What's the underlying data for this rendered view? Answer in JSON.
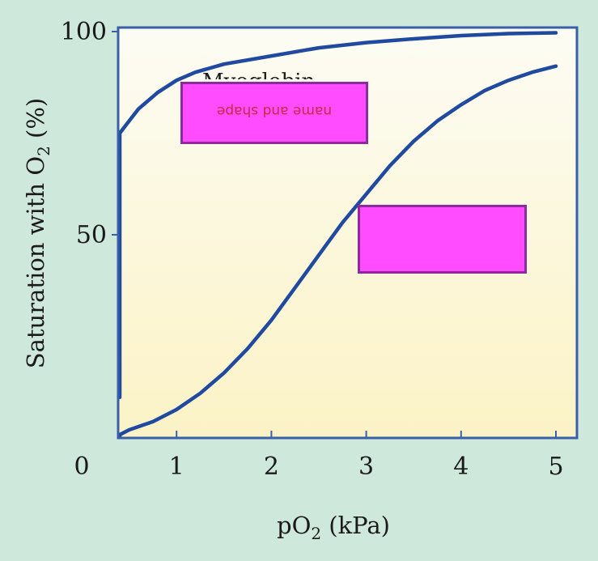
{
  "colors": {
    "background": "#cfe8dc",
    "plot_area_top": "#fdfcf4",
    "plot_area_bottom": "#fbf3c6",
    "axis": "#3a5fa8",
    "curve": "#1f4aa0",
    "label_box_fill": "#ff4cff",
    "label_box_border": "#8e2a9c",
    "box_text": "#c42a4a"
  },
  "overlays": {
    "box1_text": "name and shape",
    "partial_label": "Myoglobin"
  },
  "chart_data": {
    "type": "line",
    "xlabel": "pO2 (kPa)",
    "ylabel": "Saturation with O2 (%)",
    "x_ticks": [
      "0",
      "1",
      "2",
      "3",
      "4",
      "5"
    ],
    "y_ticks": [
      "50",
      "100"
    ],
    "xlim": [
      0,
      5
    ],
    "ylim": [
      0,
      100
    ],
    "grid": false,
    "series": [
      {
        "name": "",
        "x": [
          0.02,
          0.05,
          0.1,
          0.2,
          0.3,
          0.4,
          0.5,
          0.6,
          0.8,
          1.0,
          1.2,
          1.5,
          2.0,
          2.5,
          3.0,
          3.5,
          4.0,
          4.5,
          5.0
        ],
        "y": [
          10,
          30,
          48,
          62,
          70,
          75,
          78,
          81,
          85,
          88,
          90,
          92,
          94,
          96,
          97.3,
          98.2,
          99,
          99.5,
          99.7
        ]
      },
      {
        "name": "",
        "x": [
          0.1,
          0.3,
          0.5,
          0.75,
          1.0,
          1.25,
          1.5,
          1.75,
          2.0,
          2.25,
          2.5,
          2.75,
          3.0,
          3.25,
          3.5,
          3.75,
          4.0,
          4.25,
          4.5,
          4.75,
          5.0
        ],
        "y": [
          0.2,
          0.8,
          2,
          4,
          7,
          11,
          16,
          22,
          29,
          37,
          45,
          53,
          60,
          67,
          73,
          78,
          82,
          85.5,
          88,
          90,
          91.5
        ]
      }
    ]
  }
}
